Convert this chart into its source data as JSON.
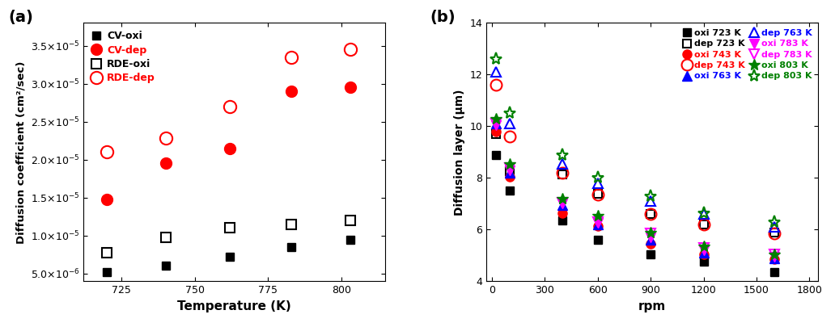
{
  "panel_a": {
    "title": "(a)",
    "xlabel": "Temperature (K)",
    "ylabel": "Diffusion coefficient (cm²/sec)",
    "xlim": [
      712,
      815
    ],
    "ylim": [
      4e-06,
      3.8e-05
    ],
    "xticks": [
      725,
      750,
      775,
      800
    ],
    "yticks": [
      5e-06,
      1e-05,
      1.5e-05,
      2e-05,
      2.5e-05,
      3e-05,
      3.5e-05
    ],
    "series": {
      "CV-oxi": {
        "x": [
          720,
          740,
          762,
          783,
          803
        ],
        "y": [
          5.2e-06,
          6e-06,
          7.2e-06,
          8.5e-06,
          9.5e-06
        ],
        "color": "black",
        "marker": "s",
        "filled": true,
        "markersize": 7
      },
      "CV-dep": {
        "x": [
          720,
          740,
          762,
          783,
          803
        ],
        "y": [
          1.48e-05,
          1.95e-05,
          2.15e-05,
          2.9e-05,
          2.95e-05
        ],
        "color": "red",
        "marker": "o",
        "filled": true,
        "markersize": 10
      },
      "RDE-oxi": {
        "x": [
          720,
          740,
          762,
          783,
          803
        ],
        "y": [
          7.8e-06,
          9.8e-06,
          1.1e-05,
          1.15e-05,
          1.2e-05
        ],
        "color": "black",
        "marker": "s",
        "filled": false,
        "markersize": 8
      },
      "RDE-dep": {
        "x": [
          720,
          740,
          762,
          783,
          803
        ],
        "y": [
          2.1e-05,
          2.28e-05,
          2.7e-05,
          3.35e-05,
          3.45e-05
        ],
        "color": "red",
        "marker": "o",
        "filled": false,
        "markersize": 11
      }
    },
    "legend_colors": {
      "CV-oxi": "black",
      "CV-dep": "red",
      "RDE-oxi": "black",
      "RDE-dep": "red"
    }
  },
  "panel_b": {
    "title": "(b)",
    "xlabel": "rpm",
    "ylabel": "Diffusion layer (μm)",
    "xlim": [
      -30,
      1850
    ],
    "ylim": [
      4,
      14
    ],
    "xticks": [
      0,
      300,
      600,
      900,
      1200,
      1500,
      1800
    ],
    "yticks": [
      4,
      6,
      8,
      10,
      12,
      14
    ],
    "series": {
      "oxi_723": {
        "label": "oxi 723 K",
        "x": [
          25,
          100,
          400,
          600,
          900,
          1200,
          1600
        ],
        "y": [
          8.9,
          7.5,
          6.35,
          5.6,
          5.05,
          4.75,
          4.35
        ],
        "color": "black",
        "marker": "s",
        "filled": true,
        "markersize": 7
      },
      "dep_723": {
        "label": "dep 723 K",
        "x": [
          25,
          100,
          400,
          600,
          900,
          1200,
          1600
        ],
        "y": [
          9.7,
          8.25,
          8.15,
          7.4,
          6.6,
          6.2,
          5.9
        ],
        "color": "black",
        "marker": "s",
        "filled": false,
        "markersize": 7
      },
      "oxi_743": {
        "label": "oxi 743 K",
        "x": [
          25,
          100,
          400,
          600,
          900,
          1200,
          1600
        ],
        "y": [
          9.8,
          8.05,
          6.65,
          6.15,
          5.45,
          5.05,
          4.85
        ],
        "color": "red",
        "marker": "o",
        "filled": true,
        "markersize": 8
      },
      "dep_743": {
        "label": "dep 743 K",
        "x": [
          25,
          100,
          400,
          600,
          900,
          1200,
          1600
        ],
        "y": [
          11.6,
          9.6,
          8.2,
          7.35,
          6.6,
          6.2,
          5.85
        ],
        "color": "red",
        "marker": "o",
        "filled": false,
        "markersize": 10
      },
      "oxi_763": {
        "label": "oxi 763 K",
        "x": [
          25,
          100,
          400,
          600,
          900,
          1200,
          1600
        ],
        "y": [
          10.1,
          8.2,
          6.95,
          6.2,
          5.6,
          5.1,
          4.9
        ],
        "color": "blue",
        "marker": "^",
        "filled": true,
        "markersize": 8
      },
      "dep_763": {
        "label": "dep 763 K",
        "x": [
          25,
          100,
          400,
          600,
          900,
          1200,
          1600
        ],
        "y": [
          12.1,
          10.1,
          8.55,
          7.8,
          7.1,
          6.6,
          6.1
        ],
        "color": "blue",
        "marker": "^",
        "filled": false,
        "markersize": 9
      },
      "oxi_783": {
        "label": "oxi 783 K",
        "x": [
          25,
          100,
          400,
          600,
          900,
          1200,
          1600
        ],
        "y": [
          10.05,
          8.3,
          7.0,
          6.25,
          5.7,
          5.2,
          4.95
        ],
        "color": "magenta",
        "marker": "v",
        "filled": true,
        "markersize": 8
      },
      "dep_783": {
        "label": "dep 783 K",
        "x": [
          25,
          100,
          400,
          600,
          900,
          1200,
          1600
        ],
        "y": [
          10.1,
          8.4,
          7.05,
          6.3,
          5.85,
          5.3,
          5.05
        ],
        "color": "magenta",
        "marker": "v",
        "filled": false,
        "markersize": 9
      },
      "oxi_803": {
        "label": "oxi 803 K",
        "x": [
          25,
          100,
          400,
          600,
          900,
          1200,
          1600
        ],
        "y": [
          10.3,
          8.55,
          7.2,
          6.55,
          5.9,
          5.35,
          5.05
        ],
        "color": "green",
        "marker": "*",
        "filled": true,
        "markersize": 10
      },
      "dep_803": {
        "label": "dep 803 K",
        "x": [
          25,
          100,
          400,
          600,
          900,
          1200,
          1600
        ],
        "y": [
          12.6,
          10.5,
          8.9,
          8.0,
          7.3,
          6.65,
          6.3
        ],
        "color": "green",
        "marker": "*",
        "filled": false,
        "markersize": 11
      }
    }
  }
}
